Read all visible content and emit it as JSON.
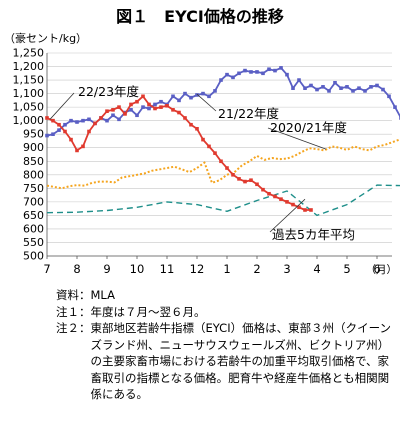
{
  "title": "図１　EYCI価格の推移",
  "unit_label": "（豪セント/kg）",
  "chart_data": {
    "type": "line",
    "title": "図１　EYCI価格の推移",
    "ylabel": "（豪セント/kg）",
    "xlabel": "（月）",
    "ylim": [
      500,
      1250
    ],
    "yticks": [
      "500",
      "550",
      "600",
      "650",
      "700",
      "750",
      "800",
      "850",
      "900",
      "950",
      "1,000",
      "1,050",
      "1,100",
      "1,150",
      "1,200",
      "1,250"
    ],
    "xticks": [
      "7",
      "8",
      "9",
      "10",
      "11",
      "12",
      "1",
      "2",
      "3",
      "4",
      "5",
      "6"
    ],
    "x_unit_label": "（月）",
    "grid": "horizontal",
    "series": [
      {
        "name": "21/22年度",
        "color": "#5a5fc4",
        "style": "solid-markers",
        "x": [
          0,
          0.2,
          0.4,
          0.6,
          0.8,
          1,
          1.2,
          1.4,
          1.6,
          1.8,
          2,
          2.2,
          2.4,
          2.6,
          2.8,
          3,
          3.2,
          3.4,
          3.6,
          3.8,
          4,
          4.2,
          4.4,
          4.6,
          4.8,
          5,
          5.2,
          5.4,
          5.6,
          5.8,
          6,
          6.2,
          6.4,
          6.6,
          6.8,
          7,
          7.2,
          7.4,
          7.6,
          7.8,
          8,
          8.2,
          8.4,
          8.6,
          8.8,
          9,
          9.2,
          9.4,
          9.6,
          9.8,
          10,
          10.2,
          10.4,
          10.6,
          10.8,
          11,
          11.2,
          11.4,
          11.6,
          11.8
        ],
        "values": [
          945,
          950,
          965,
          985,
          1000,
          995,
          1000,
          1005,
          990,
          1010,
          1000,
          1020,
          1005,
          1030,
          1040,
          1020,
          1050,
          1045,
          1060,
          1070,
          1060,
          1090,
          1075,
          1100,
          1085,
          1095,
          1100,
          1090,
          1110,
          1150,
          1170,
          1160,
          1175,
          1185,
          1180,
          1180,
          1175,
          1190,
          1185,
          1195,
          1170,
          1120,
          1150,
          1120,
          1130,
          1115,
          1125,
          1110,
          1140,
          1120,
          1125,
          1110,
          1120,
          1110,
          1125,
          1130,
          1115,
          1090,
          1050,
          1010
        ]
      },
      {
        "name": "22/23年度",
        "color": "#e03a2f",
        "style": "solid-markers",
        "x": [
          0,
          0.2,
          0.4,
          0.6,
          0.8,
          1,
          1.2,
          1.4,
          1.6,
          1.8,
          2,
          2.2,
          2.4,
          2.6,
          2.8,
          3,
          3.2,
          3.4,
          3.6,
          3.8,
          4,
          4.2,
          4.4,
          4.6,
          4.8,
          5,
          5.2,
          5.4,
          5.6,
          5.8,
          6,
          6.2,
          6.4,
          6.6,
          6.8,
          7,
          7.2,
          7.4,
          7.6,
          7.8,
          8,
          8.2,
          8.4,
          8.6,
          8.8
        ],
        "values": [
          1010,
          1000,
          985,
          960,
          930,
          890,
          905,
          960,
          990,
          1010,
          1035,
          1040,
          1050,
          1025,
          1060,
          1070,
          1090,
          1060,
          1045,
          1050,
          1055,
          1040,
          1030,
          1010,
          985,
          970,
          930,
          905,
          880,
          850,
          825,
          800,
          785,
          775,
          780,
          765,
          745,
          730,
          720,
          710,
          700,
          690,
          680,
          670,
          670
        ]
      },
      {
        "name": "2020/21年度",
        "color": "#f5a51f",
        "style": "dotted",
        "x": [
          0,
          0.25,
          0.5,
          0.75,
          1,
          1.25,
          1.5,
          1.75,
          2,
          2.25,
          2.5,
          2.75,
          3,
          3.25,
          3.5,
          3.75,
          4,
          4.25,
          4.5,
          4.75,
          5,
          5.25,
          5.5,
          5.75,
          6,
          6.25,
          6.5,
          6.75,
          7,
          7.25,
          7.5,
          7.75,
          8,
          8.25,
          8.5,
          8.75,
          9,
          9.25,
          9.5,
          9.75,
          10,
          10.25,
          10.5,
          10.75,
          11,
          11.25,
          11.5,
          11.75
        ],
        "values": [
          760,
          755,
          750,
          758,
          762,
          760,
          770,
          775,
          775,
          772,
          790,
          795,
          800,
          805,
          815,
          820,
          825,
          830,
          820,
          810,
          825,
          845,
          770,
          780,
          800,
          810,
          835,
          850,
          870,
          855,
          862,
          858,
          860,
          870,
          885,
          898,
          895,
          890,
          905,
          900,
          892,
          905,
          895,
          890,
          905,
          910,
          920,
          930
        ]
      },
      {
        "name": "過去5カ年平均",
        "color": "#1f8f8a",
        "style": "dashed",
        "x": [
          0,
          1,
          2,
          3,
          4,
          5,
          6,
          7,
          8,
          9,
          10,
          11,
          11.8
        ],
        "values": [
          660,
          662,
          668,
          680,
          700,
          690,
          665,
          705,
          740,
          650,
          690,
          762,
          760
        ]
      }
    ],
    "annotations": [
      "22/23年度",
      "21/22年度",
      "2020/21年度",
      "過去5カ年平均"
    ]
  },
  "notes": [
    {
      "head": "資料：",
      "body": "MLA"
    },
    {
      "head": "注１：",
      "body": "年度は７月～翌６月。"
    },
    {
      "head": "注２：",
      "body": "東部地区若齢牛指標（EYCI）価格は、東部３州（クイーンズランド州、ニューサウスウェールズ州、ビクトリア州）の主要家畜市場における若齢牛の加重平均取引価格で、家畜取引の指標となる価格。肥育牛や経産牛価格とも相関関係にある。"
    }
  ]
}
